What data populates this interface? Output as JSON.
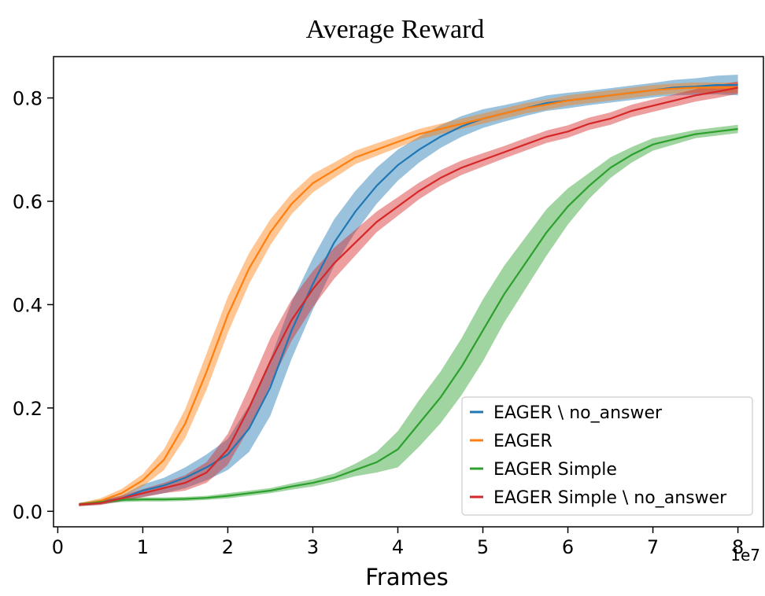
{
  "chart_data": {
    "type": "line",
    "title": "Average Reward",
    "xlabel": "Frames",
    "ylabel": "",
    "x_offset_label": "1e7",
    "xlim": [
      -0.05,
      8.3
    ],
    "ylim": [
      -0.03,
      0.88
    ],
    "xticks": [
      0,
      1,
      2,
      3,
      4,
      5,
      6,
      7,
      8
    ],
    "xtick_labels": [
      "0",
      "1",
      "2",
      "3",
      "4",
      "5",
      "6",
      "7",
      "8"
    ],
    "yticks": [
      0.0,
      0.2,
      0.4,
      0.6,
      0.8
    ],
    "ytick_labels": [
      "0.0",
      "0.2",
      "0.4",
      "0.6",
      "0.8"
    ],
    "grid": false,
    "legend_position": "lower-right",
    "x": [
      0.25,
      0.5,
      0.75,
      1.0,
      1.25,
      1.5,
      1.75,
      2.0,
      2.25,
      2.5,
      2.75,
      3.0,
      3.25,
      3.5,
      3.75,
      4.0,
      4.25,
      4.5,
      4.75,
      5.0,
      5.25,
      5.5,
      5.75,
      6.0,
      6.25,
      6.5,
      6.75,
      7.0,
      7.25,
      7.5,
      7.75,
      8.0
    ],
    "series": [
      {
        "name": "EAGER \\ no_answer",
        "color": "#1f77b4",
        "values": [
          0.013,
          0.017,
          0.025,
          0.04,
          0.05,
          0.065,
          0.085,
          0.11,
          0.16,
          0.24,
          0.35,
          0.44,
          0.52,
          0.58,
          0.63,
          0.67,
          0.7,
          0.725,
          0.745,
          0.76,
          0.77,
          0.78,
          0.79,
          0.795,
          0.8,
          0.805,
          0.81,
          0.815,
          0.82,
          0.822,
          0.825,
          0.825
        ],
        "band": [
          0.003,
          0.004,
          0.006,
          0.012,
          0.015,
          0.02,
          0.025,
          0.03,
          0.045,
          0.055,
          0.055,
          0.05,
          0.045,
          0.04,
          0.035,
          0.03,
          0.025,
          0.022,
          0.02,
          0.018,
          0.016,
          0.015,
          0.015,
          0.015,
          0.014,
          0.014,
          0.014,
          0.014,
          0.015,
          0.016,
          0.018,
          0.02
        ]
      },
      {
        "name": "EAGER",
        "color": "#ff7f0e",
        "values": [
          0.013,
          0.02,
          0.035,
          0.06,
          0.1,
          0.17,
          0.27,
          0.38,
          0.47,
          0.54,
          0.595,
          0.635,
          0.66,
          0.685,
          0.7,
          0.715,
          0.73,
          0.74,
          0.75,
          0.76,
          0.77,
          0.78,
          0.787,
          0.795,
          0.8,
          0.805,
          0.81,
          0.815,
          0.818,
          0.82,
          0.82,
          0.82
        ],
        "band": [
          0.003,
          0.005,
          0.008,
          0.012,
          0.02,
          0.028,
          0.035,
          0.035,
          0.03,
          0.025,
          0.02,
          0.018,
          0.015,
          0.013,
          0.012,
          0.011,
          0.01,
          0.01,
          0.01,
          0.01,
          0.01,
          0.01,
          0.01,
          0.01,
          0.01,
          0.01,
          0.01,
          0.01,
          0.01,
          0.01,
          0.01,
          0.01
        ]
      },
      {
        "name": "EAGER Simple",
        "color": "#2ca02c",
        "values": [
          0.013,
          0.018,
          0.022,
          0.023,
          0.023,
          0.024,
          0.026,
          0.03,
          0.035,
          0.04,
          0.048,
          0.055,
          0.065,
          0.08,
          0.095,
          0.12,
          0.17,
          0.22,
          0.28,
          0.35,
          0.42,
          0.48,
          0.54,
          0.59,
          0.63,
          0.665,
          0.69,
          0.71,
          0.72,
          0.73,
          0.735,
          0.74
        ],
        "band": [
          0.003,
          0.004,
          0.004,
          0.004,
          0.004,
          0.004,
          0.004,
          0.005,
          0.005,
          0.005,
          0.006,
          0.007,
          0.008,
          0.012,
          0.02,
          0.035,
          0.045,
          0.05,
          0.055,
          0.06,
          0.055,
          0.05,
          0.045,
          0.035,
          0.025,
          0.02,
          0.015,
          0.012,
          0.01,
          0.008,
          0.008,
          0.008
        ]
      },
      {
        "name": "EAGER Simple \\ no_answer",
        "color": "#d62728",
        "values": [
          0.013,
          0.016,
          0.025,
          0.035,
          0.045,
          0.055,
          0.075,
          0.12,
          0.2,
          0.29,
          0.37,
          0.43,
          0.48,
          0.52,
          0.56,
          0.59,
          0.62,
          0.645,
          0.665,
          0.68,
          0.695,
          0.71,
          0.725,
          0.735,
          0.75,
          0.76,
          0.775,
          0.785,
          0.795,
          0.805,
          0.812,
          0.82
        ],
        "band": [
          0.003,
          0.004,
          0.005,
          0.008,
          0.01,
          0.015,
          0.02,
          0.03,
          0.04,
          0.045,
          0.04,
          0.035,
          0.03,
          0.025,
          0.02,
          0.018,
          0.016,
          0.015,
          0.014,
          0.013,
          0.012,
          0.012,
          0.012,
          0.012,
          0.012,
          0.012,
          0.012,
          0.012,
          0.012,
          0.012,
          0.012,
          0.012
        ]
      }
    ]
  }
}
